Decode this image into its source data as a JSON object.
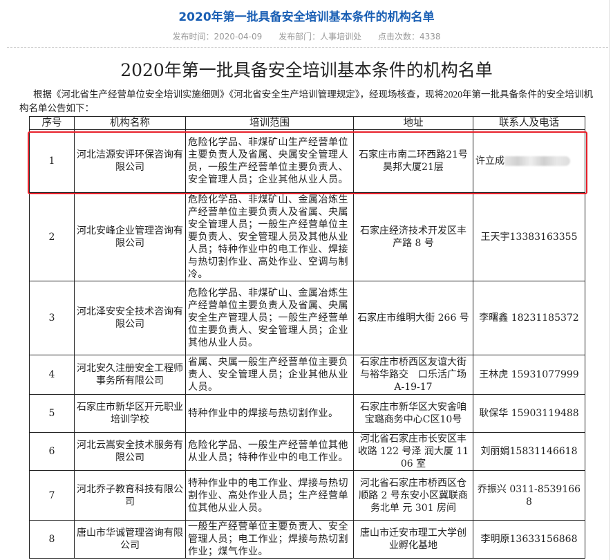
{
  "header": {
    "title": "2020年第一批具备安全培训基本条件的机构名单",
    "publish_time": "发布时间：2020-04-09",
    "department": "发布部门：人事培训处",
    "clicks": "点击次数：4338"
  },
  "article": {
    "title": "2020年第一批具备安全培训基本条件的机构名单",
    "intro": "根据《河北省生产经营单位安全培训实施细则》《河北省安全生产培训管理规定》，经现场核查，现将2020年第一批具备条件的安全培训机构名单公告如下："
  },
  "table": {
    "headers": [
      "序号",
      "机构名称",
      "培训范围",
      "地址",
      "联系人及电话"
    ],
    "rows": [
      {
        "no": "1",
        "name": "河北洁源安评环保咨询有限公司",
        "scope": "危险化学品、非煤矿山生产经营单位主要负责人及省属、央属安全管理人员，一般生产经营单位主要负责人、安全管理人员；企业其他从业人员。",
        "address": "石家庄市南二环西路21号昊邦大厦21层",
        "contact": "许立成"
      },
      {
        "no": "2",
        "name": "河北安峰企业管理咨询有限公司",
        "scope": "危险化学品、非煤矿山、金属冶炼生产经营单位主要负责人及省属、央属安全管理人员；一般生产经营单位主要负责人、安全管理人员及其他从业人员；特种作业中的电工作业、焊接与热切割作业、高处作业、空调与制冷。",
        "address": "石家庄经济技术开发区丰产路 8 号",
        "contact": "王天宇13383163355"
      },
      {
        "no": "3",
        "name": "河北泽安安全技术咨询有限公司",
        "scope": "危险化学品、非煤矿山、金属冶炼生产经营单位主要负责人及省属、央属安全生产管理人员；一般生产经营单位主要负责人、安全管理人员；企业其他从业人员。",
        "address": "石家庄市维明大街 266 号",
        "contact": "李曙鑫 18231185372"
      },
      {
        "no": "4",
        "name": "河北安久注册安全工程师事务所有限公司",
        "scope": "省属、央属一般生产经营单位主要负责人、安全管理人员；企业其他从业人员。",
        "address": "石家庄市桥西区友谊大街与裕华路交　口乐活广场 A-19-17",
        "contact": "王林虎 15931077999"
      },
      {
        "no": "5",
        "name": "石家庄市新华区开元职业培训学校",
        "scope": "特种作业中的焊接与热切割作业。",
        "address": "石家庄市新华区大安舍咱宝璐商务中心C区10号",
        "contact": "耿保华 15903119488"
      },
      {
        "no": "6",
        "name": "河北云嵩安全技术服务有限公司",
        "scope": "危险化学品、一般生产经营单位其他从业人员；特种作业中的电工作业。",
        "address": "河北省石家庄市长安区丰收路 122 号泽 润大厦 1106 室",
        "contact": "刘丽娟15831146618"
      },
      {
        "no": "7",
        "name": "河北乔子教育科技有限公司",
        "scope": "特种作业中的电工作业、焊接与热切割作业、高处作业人员；生产经营单位其他从业人员。",
        "address": "河北省石家庄市桥西区仓顺路 2 号东安小区冀联商务北单 元 301 房间",
        "contact": "乔振兴 0311-85391668"
      },
      {
        "no": "8",
        "name": "唐山市华诚管理咨询有限公司",
        "scope": "一般生产经营单位主要负责人、安全管理人员；电工作业；焊接与热切割作业；煤气作业。",
        "address": "唐山市迁安市理工大学创业孵化基地",
        "contact": "李明原13633156868"
      }
    ]
  },
  "colors": {
    "title_blue": "#1a5fb4",
    "highlight_red": "#e8202a"
  }
}
